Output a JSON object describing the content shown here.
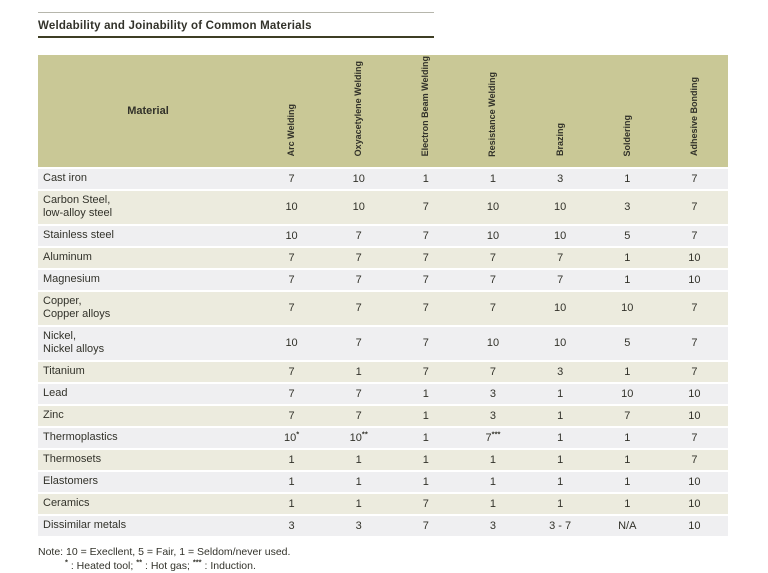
{
  "title": "Weldability and Joinability of Common Materials",
  "table": {
    "material_header": "Material",
    "columns": [
      "Arc Welding",
      "Oxyacetylene Welding",
      "Electron Beam Welding",
      "Resistance Welding",
      "Brazing",
      "Soldering",
      "Adhesive Bonding"
    ],
    "rows": [
      {
        "material": "Cast iron",
        "values": [
          "7",
          "10",
          "1",
          "1",
          "3",
          "1",
          "7"
        ]
      },
      {
        "material": "Carbon Steel,\nlow-alloy steel",
        "values": [
          "10",
          "10",
          "7",
          "10",
          "10",
          "3",
          "7"
        ]
      },
      {
        "material": "Stainless steel",
        "values": [
          "10",
          "7",
          "7",
          "10",
          "10",
          "5",
          "7"
        ]
      },
      {
        "material": "Aluminum",
        "values": [
          "7",
          "7",
          "7",
          "7",
          "7",
          "1",
          "10"
        ]
      },
      {
        "material": "Magnesium",
        "values": [
          "7",
          "7",
          "7",
          "7",
          "7",
          "1",
          "10"
        ]
      },
      {
        "material": "Copper,\nCopper alloys",
        "values": [
          "7",
          "7",
          "7",
          "7",
          "10",
          "10",
          "7"
        ]
      },
      {
        "material": "Nickel,\nNickel alloys",
        "values": [
          "10",
          "7",
          "7",
          "10",
          "10",
          "5",
          "7"
        ]
      },
      {
        "material": "Titanium",
        "values": [
          "7",
          "1",
          "7",
          "7",
          "3",
          "1",
          "7"
        ]
      },
      {
        "material": "Lead",
        "values": [
          "7",
          "7",
          "1",
          "3",
          "1",
          "10",
          "10"
        ]
      },
      {
        "material": "Zinc",
        "values": [
          "7",
          "7",
          "1",
          "3",
          "1",
          "7",
          "10"
        ]
      },
      {
        "material": "Thermoplastics",
        "values": [
          "10^*^",
          "10^**^",
          "1",
          "7^***^",
          "1",
          "1",
          "7"
        ]
      },
      {
        "material": "Thermosets",
        "values": [
          "1",
          "1",
          "1",
          "1",
          "1",
          "1",
          "7"
        ]
      },
      {
        "material": "Elastomers",
        "values": [
          "1",
          "1",
          "1",
          "1",
          "1",
          "1",
          "10"
        ]
      },
      {
        "material": "Ceramics",
        "values": [
          "1",
          "1",
          "7",
          "1",
          "1",
          "1",
          "10"
        ]
      },
      {
        "material": "Dissimilar metals",
        "values": [
          "3",
          "3",
          "7",
          "3",
          "3 - 7",
          "N/A",
          "10"
        ]
      }
    ]
  },
  "note": {
    "line1": "Note: 10 = Execllent, 5 = Fair, 1 = Seldom/never used.",
    "line2": "^*^ : Heated tool; ^**^ : Hot gas; ^***^ : Induction."
  },
  "colors": {
    "header_bg": "#c9c896",
    "row_gray": "#efeff1",
    "row_beige": "#ecebde",
    "title_rule": "#3e3e24",
    "top_rule": "#b6b6ac",
    "text": "#32322a"
  }
}
